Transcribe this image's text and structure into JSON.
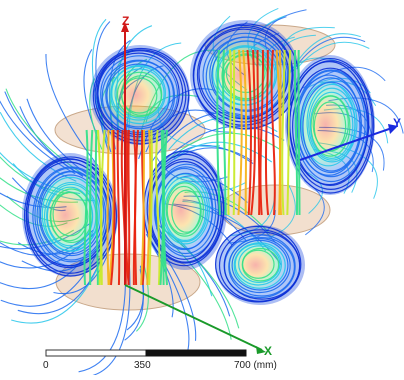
{
  "viewport": {
    "background": "#ffffff",
    "colormap": [
      "#0a2fd6",
      "#1e6cf0",
      "#26c6ea",
      "#35e08a",
      "#c8ea2a",
      "#f7b21b",
      "#e8230f"
    ],
    "coil_color": "#e9c9ad"
  },
  "axes": {
    "z_label": "Z",
    "x_label": "X",
    "y_label": "Y",
    "z_color": "#d01818",
    "x_color": "#1a9a2a",
    "y_color": "#1a2adf"
  },
  "scale_bar": {
    "ticks": [
      "0",
      "350",
      "700 (mm)"
    ]
  }
}
